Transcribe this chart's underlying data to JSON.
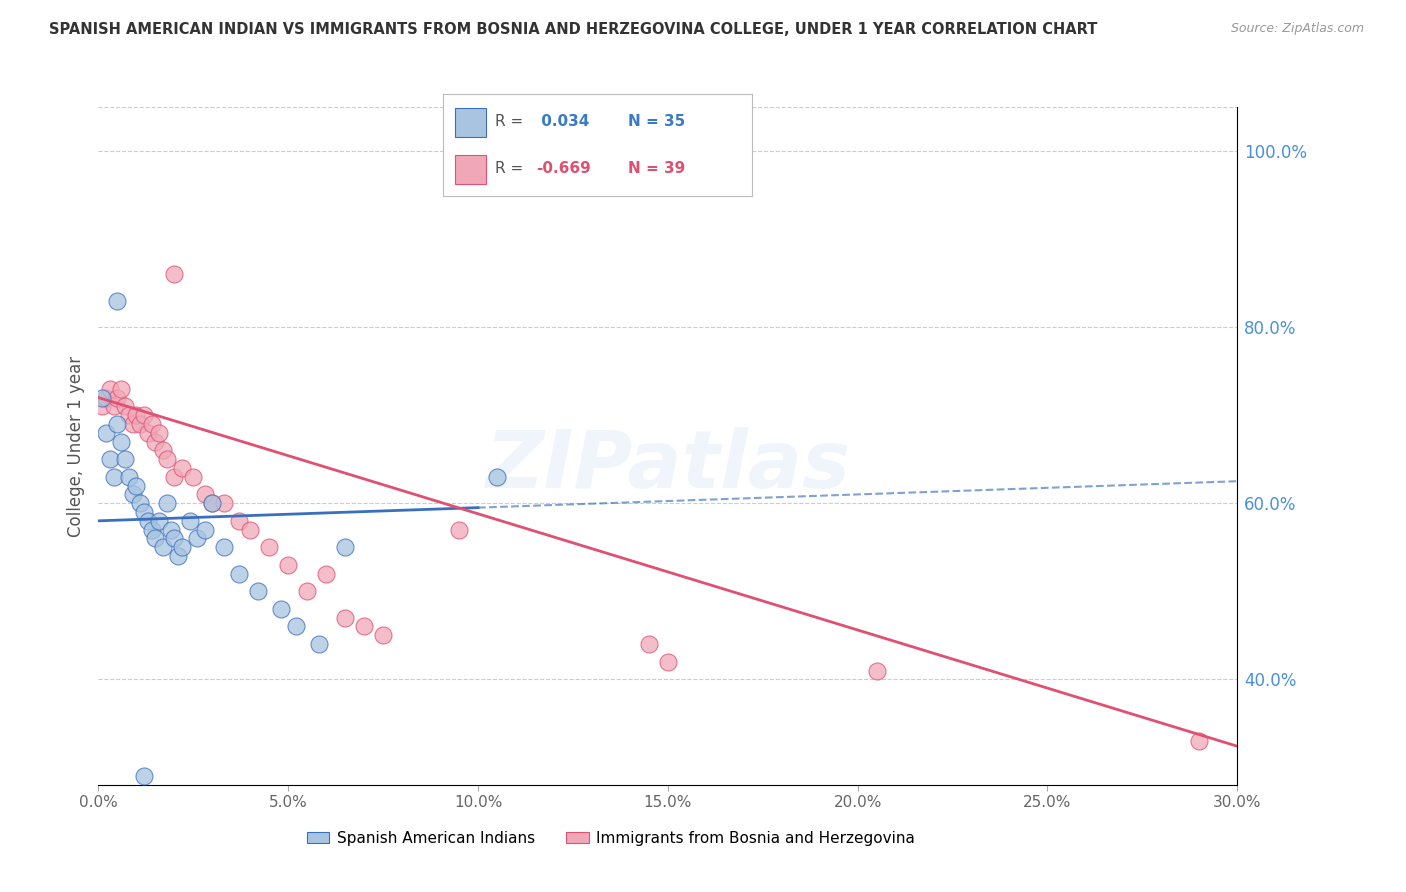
{
  "title": "SPANISH AMERICAN INDIAN VS IMMIGRANTS FROM BOSNIA AND HERZEGOVINA COLLEGE, UNDER 1 YEAR CORRELATION CHART",
  "source": "Source: ZipAtlas.com",
  "ylabel": "College, Under 1 year",
  "xlabel_ticks": [
    "0.0%",
    "5.0%",
    "10.0%",
    "15.0%",
    "20.0%",
    "25.0%",
    "30.0%"
  ],
  "xlabel_vals": [
    0.0,
    5.0,
    10.0,
    15.0,
    20.0,
    25.0,
    30.0
  ],
  "ylabel_ticks_right": [
    "100.0%",
    "80.0%",
    "60.0%",
    "40.0%"
  ],
  "ylabel_vals_right": [
    100.0,
    80.0,
    60.0,
    40.0
  ],
  "xlim": [
    0.0,
    30.0
  ],
  "ylim": [
    28.0,
    105.0
  ],
  "blue_R": 0.034,
  "blue_N": 35,
  "pink_R": -0.669,
  "pink_N": 39,
  "blue_color": "#a8c4e0",
  "blue_line_color": "#3a6fbf",
  "pink_color": "#f0a8b8",
  "pink_line_color": "#e05070",
  "watermark": "ZIPatlas",
  "blue_scatter_x": [
    0.1,
    0.2,
    0.3,
    0.4,
    0.5,
    0.6,
    0.7,
    0.8,
    0.9,
    1.0,
    1.1,
    1.2,
    1.3,
    1.4,
    1.5,
    1.6,
    1.7,
    1.8,
    1.9,
    2.0,
    2.1,
    2.2,
    2.4,
    2.6,
    2.8,
    3.0,
    3.3,
    3.7,
    4.2,
    4.8,
    5.2,
    5.8,
    6.5,
    0.5,
    10.5
  ],
  "blue_scatter_y": [
    72.0,
    68.0,
    65.0,
    63.0,
    69.0,
    67.0,
    65.0,
    63.0,
    61.0,
    62.0,
    60.0,
    59.0,
    58.0,
    57.0,
    56.0,
    58.0,
    55.0,
    60.0,
    57.0,
    56.0,
    54.0,
    55.0,
    58.0,
    56.0,
    57.0,
    60.0,
    55.0,
    52.0,
    50.0,
    48.0,
    46.0,
    44.0,
    55.0,
    83.0,
    63.0
  ],
  "blue_scatter_y_outlier": [
    29.0
  ],
  "blue_scatter_x_outlier": [
    1.2
  ],
  "pink_scatter_x": [
    0.1,
    0.2,
    0.3,
    0.4,
    0.5,
    0.6,
    0.7,
    0.8,
    0.9,
    1.0,
    1.1,
    1.2,
    1.3,
    1.4,
    1.5,
    1.6,
    1.7,
    1.8,
    2.0,
    2.2,
    2.5,
    2.8,
    3.0,
    3.3,
    3.7,
    4.0,
    4.5,
    5.0,
    5.5,
    6.0,
    6.5,
    7.0,
    7.5,
    9.5,
    14.5,
    15.0,
    20.5,
    29.0,
    2.0
  ],
  "pink_scatter_y": [
    71.0,
    72.0,
    73.0,
    71.0,
    72.0,
    73.0,
    71.0,
    70.0,
    69.0,
    70.0,
    69.0,
    70.0,
    68.0,
    69.0,
    67.0,
    68.0,
    66.0,
    65.0,
    63.0,
    64.0,
    63.0,
    61.0,
    60.0,
    60.0,
    58.0,
    57.0,
    55.0,
    53.0,
    50.0,
    52.0,
    47.0,
    46.0,
    45.0,
    57.0,
    44.0,
    42.0,
    41.0,
    33.0,
    86.0
  ],
  "legend_blue_label": "Spanish American Indians",
  "legend_pink_label": "Immigrants from Bosnia and Herzegovina",
  "background_color": "#ffffff",
  "grid_color": "#cccccc",
  "blue_trend_intercept": 58.0,
  "blue_trend_slope": 0.15,
  "pink_trend_intercept": 72.0,
  "pink_trend_slope": -1.32
}
